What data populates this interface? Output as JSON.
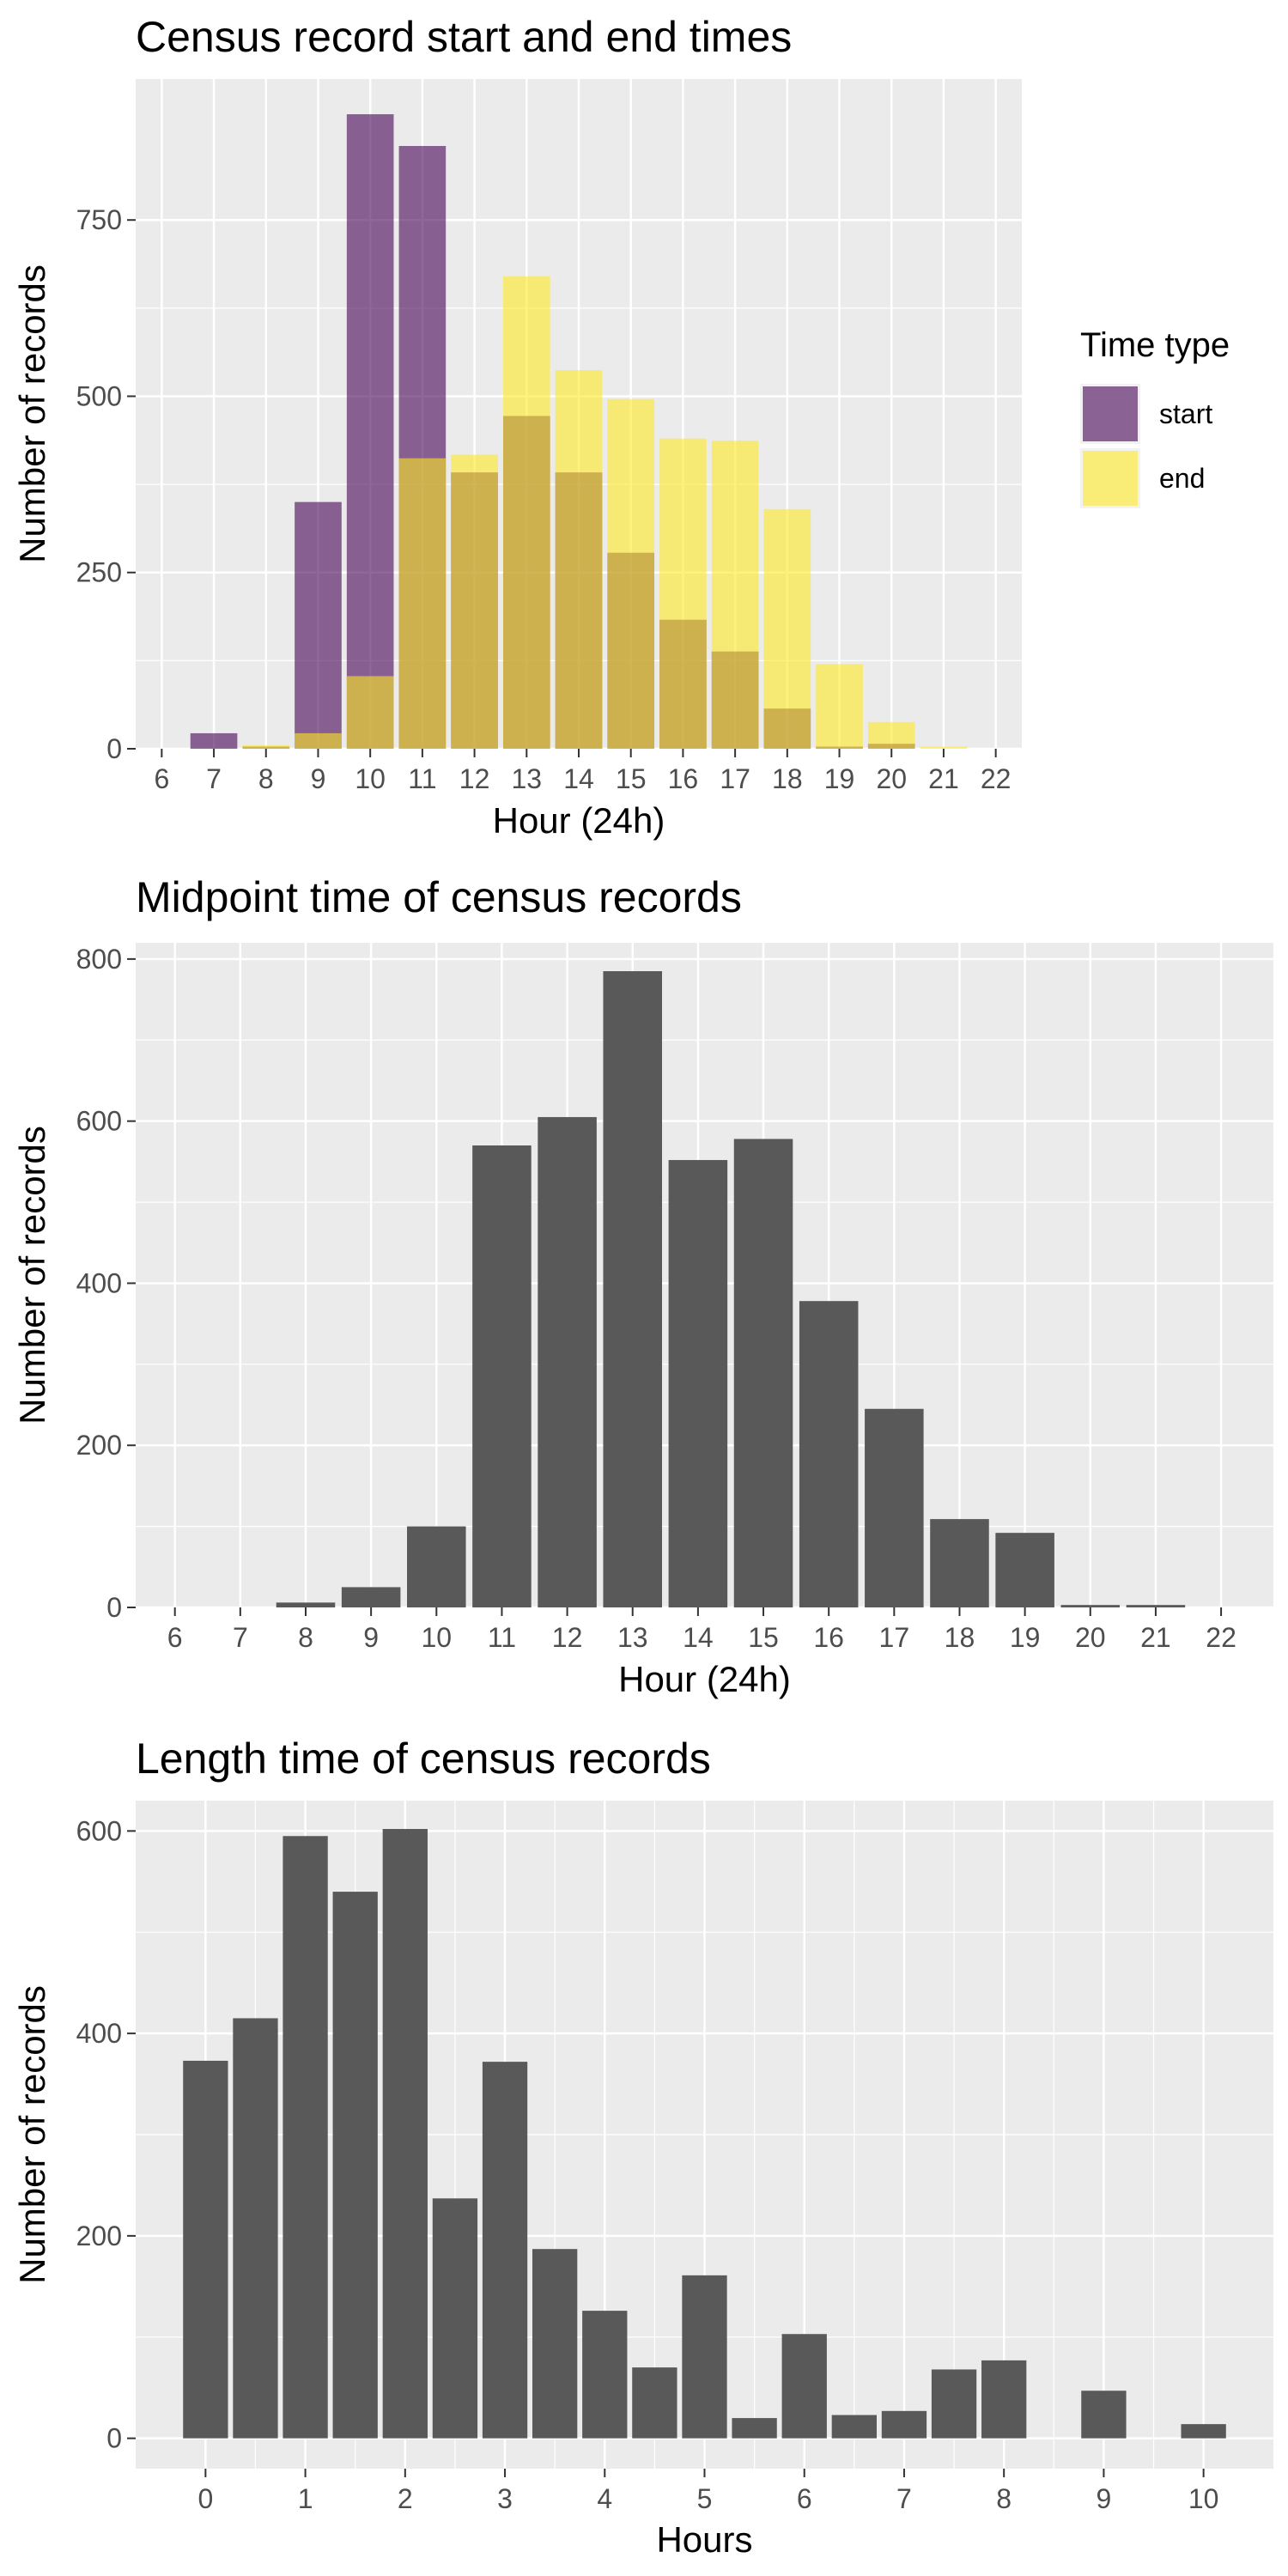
{
  "chart_data": [
    {
      "type": "bar",
      "title": "Census record start and end times",
      "xlabel": "Hour (24h)",
      "ylabel": "Number of records",
      "xlim": [
        5.5,
        22.5
      ],
      "ylim": [
        0,
        950
      ],
      "x_ticks": [
        6,
        7,
        8,
        9,
        10,
        11,
        12,
        13,
        14,
        15,
        16,
        17,
        18,
        19,
        20,
        21,
        22
      ],
      "y_ticks": [
        0,
        250,
        500,
        750
      ],
      "grid": true,
      "bar_position": "identity, overlapping, semi-transparent",
      "legend": {
        "title": "Time type",
        "position": "right"
      },
      "series": [
        {
          "name": "start",
          "color": "#440154",
          "x": [
            7,
            8,
            9,
            10,
            11,
            12,
            13,
            14,
            15,
            16,
            17,
            18,
            19,
            20
          ],
          "values": [
            22,
            3,
            350,
            900,
            855,
            392,
            472,
            392,
            278,
            183,
            138,
            57,
            3,
            7
          ]
        },
        {
          "name": "end",
          "color": "#FDE725",
          "x": [
            8,
            9,
            10,
            11,
            12,
            13,
            14,
            15,
            16,
            17,
            18,
            19,
            20,
            21
          ],
          "values": [
            5,
            22,
            103,
            412,
            417,
            670,
            537,
            496,
            440,
            437,
            340,
            120,
            38,
            3
          ]
        }
      ]
    },
    {
      "type": "bar",
      "title": "Midpoint time of census records",
      "xlabel": "Hour (24h)",
      "ylabel": "Number of records",
      "xlim": [
        5.4,
        22.8
      ],
      "ylim": [
        0,
        820
      ],
      "x_ticks": [
        6,
        7,
        8,
        9,
        10,
        11,
        12,
        13,
        14,
        15,
        16,
        17,
        18,
        19,
        20,
        21,
        22
      ],
      "y_ticks": [
        0,
        200,
        400,
        600,
        800
      ],
      "grid": true,
      "color": "#595959",
      "x": [
        8,
        9,
        10,
        11,
        12,
        13,
        14,
        15,
        16,
        17,
        18,
        19,
        20,
        21
      ],
      "values": [
        6,
        25,
        100,
        570,
        605,
        785,
        552,
        578,
        378,
        245,
        109,
        92,
        3,
        3
      ]
    },
    {
      "type": "bar",
      "title": "Length time of census records",
      "xlabel": "Hours",
      "ylabel": "Number of records",
      "xlim": [
        -0.7,
        10.7
      ],
      "ylim": [
        -30,
        630
      ],
      "x_ticks": [
        0,
        1,
        2,
        3,
        4,
        5,
        6,
        7,
        8,
        9,
        10
      ],
      "y_ticks": [
        0,
        200,
        400,
        600
      ],
      "grid": true,
      "color": "#595959",
      "x": [
        0,
        0.5,
        1,
        1.5,
        2,
        2.5,
        3,
        3.5,
        4,
        4.5,
        5,
        5.5,
        6,
        6.5,
        7,
        7.5,
        8,
        9,
        10
      ],
      "values": [
        373,
        415,
        595,
        540,
        602,
        237,
        372,
        187,
        126,
        70,
        161,
        20,
        103,
        23,
        27,
        68,
        77,
        47,
        14
      ]
    }
  ]
}
